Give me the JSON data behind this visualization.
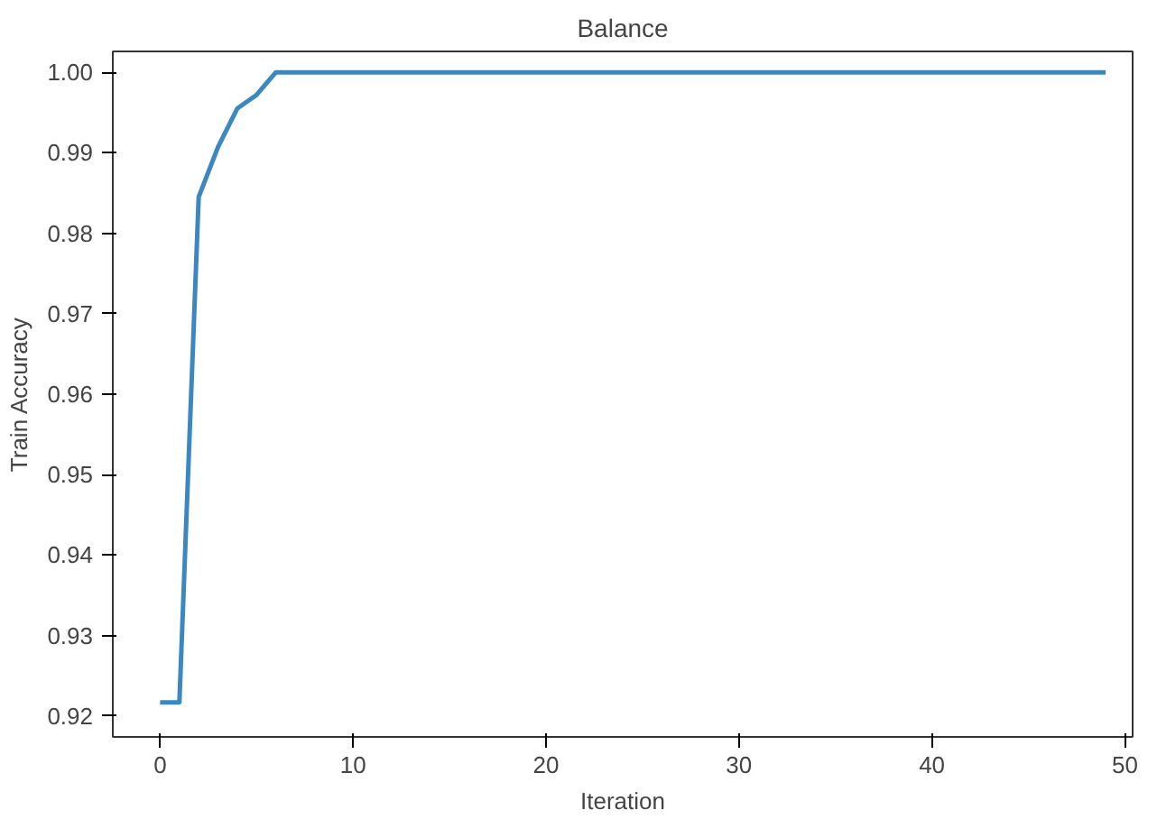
{
  "chart_data": {
    "type": "line",
    "title": "Balance",
    "xlabel": "Iteration",
    "ylabel": "Train Accuracy",
    "x": [
      0,
      1,
      2,
      3,
      4,
      5,
      6,
      7,
      8,
      9,
      10,
      11,
      12,
      13,
      14,
      15,
      16,
      17,
      18,
      19,
      20,
      21,
      22,
      23,
      24,
      25,
      26,
      27,
      28,
      29,
      30,
      31,
      32,
      33,
      34,
      35,
      36,
      37,
      38,
      39,
      40,
      41,
      42,
      43,
      44,
      45,
      46,
      47,
      48,
      49
    ],
    "series": [
      {
        "color": "#3a87c2",
        "values": [
          0.9217,
          0.9217,
          0.9845,
          0.9907,
          0.9955,
          0.9972,
          1.0,
          1.0,
          1.0,
          1.0,
          1.0,
          1.0,
          1.0,
          1.0,
          1.0,
          1.0,
          1.0,
          1.0,
          1.0,
          1.0,
          1.0,
          1.0,
          1.0,
          1.0,
          1.0,
          1.0,
          1.0,
          1.0,
          1.0,
          1.0,
          1.0,
          1.0,
          1.0,
          1.0,
          1.0,
          1.0,
          1.0,
          1.0,
          1.0,
          1.0,
          1.0,
          1.0,
          1.0,
          1.0,
          1.0,
          1.0,
          1.0,
          1.0,
          1.0,
          1.0
        ]
      }
    ],
    "xlim": [
      -2.45,
      50.4
    ],
    "ylim": [
      0.9174,
      1.0026
    ],
    "xticks": [
      0,
      10,
      20,
      30,
      40,
      50
    ],
    "yticks": [
      {
        "value": 0.92,
        "label": "0.92"
      },
      {
        "value": 0.93,
        "label": "0.93"
      },
      {
        "value": 0.94,
        "label": "0.94"
      },
      {
        "value": 0.95,
        "label": "0.95"
      },
      {
        "value": 0.96,
        "label": "0.96"
      },
      {
        "value": 0.97,
        "label": "0.97"
      },
      {
        "value": 0.98,
        "label": "0.98"
      },
      {
        "value": 0.99,
        "label": "0.99"
      },
      {
        "value": 1.0,
        "label": "1.00"
      }
    ],
    "grid": false,
    "marker": "none",
    "line_style": "solid"
  }
}
